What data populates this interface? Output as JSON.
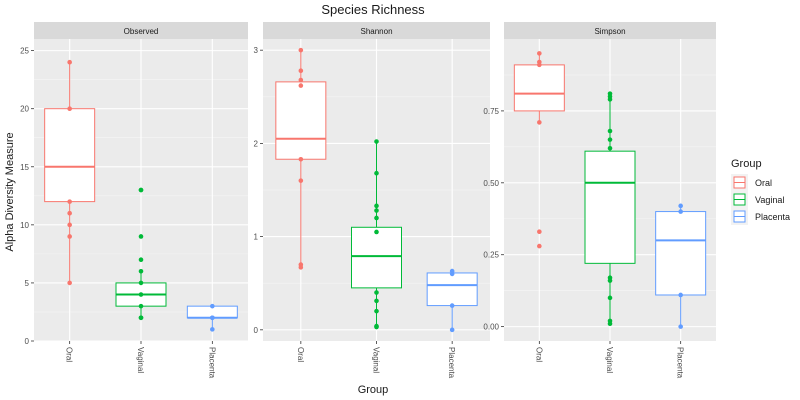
{
  "chart_data": {
    "type": "boxplot",
    "title": "Species Richness",
    "xlabel": "Group",
    "ylabel": "Alpha Diversity Measure",
    "categories": [
      "Oral",
      "Vaginal",
      "Placenta"
    ],
    "legend": {
      "title": "Group",
      "position": "right",
      "entries": [
        {
          "label": "Oral",
          "color": "#F8766D"
        },
        {
          "label": "Vaginal",
          "color": "#00BA38"
        },
        {
          "label": "Placenta",
          "color": "#619CFF"
        }
      ]
    },
    "grid": true,
    "panels": [
      {
        "name": "Observed",
        "ylim": [
          0,
          26
        ],
        "yticks": [
          0,
          5,
          10,
          15,
          20,
          25
        ],
        "ytick_labels": [
          "0",
          "5",
          "10",
          "15",
          "20",
          "25"
        ],
        "boxes": [
          {
            "group": "Oral",
            "min": 5,
            "q1": 12,
            "median": 15,
            "q3": 20,
            "max": 24,
            "points": [
              24,
              20,
              12,
              11,
              10,
              9,
              5
            ]
          },
          {
            "group": "Vaginal",
            "min": 2,
            "q1": 3,
            "median": 4,
            "q3": 5,
            "max": 6,
            "points": [
              13,
              13,
              9,
              7,
              6,
              5,
              4,
              3,
              2,
              2
            ]
          },
          {
            "group": "Placenta",
            "min": 1,
            "q1": 2,
            "median": 2,
            "q3": 3,
            "max": 3,
            "points": [
              3,
              2,
              2,
              1
            ]
          }
        ]
      },
      {
        "name": "Shannon",
        "ylim": [
          -0.12,
          3.12
        ],
        "yticks": [
          0,
          1,
          2,
          3
        ],
        "ytick_labels": [
          "0",
          "1",
          "2",
          "3"
        ],
        "boxes": [
          {
            "group": "Oral",
            "min": 0.67,
            "q1": 1.83,
            "median": 2.05,
            "q3": 2.66,
            "max": 3.0,
            "points": [
              3.0,
              2.78,
              2.68,
              2.62,
              1.83,
              1.6,
              0.7,
              0.67
            ]
          },
          {
            "group": "Vaginal",
            "min": 0.03,
            "q1": 0.45,
            "median": 0.79,
            "q3": 1.1,
            "max": 2.02,
            "points": [
              2.02,
              1.68,
              1.33,
              1.28,
              1.2,
              1.05,
              0.4,
              0.31,
              0.2,
              0.04,
              0.03
            ]
          },
          {
            "group": "Placenta",
            "min": 0.0,
            "q1": 0.26,
            "median": 0.48,
            "q3": 0.61,
            "max": 0.63,
            "points": [
              0.63,
              0.6,
              0.26,
              0.0
            ]
          }
        ]
      },
      {
        "name": "Simpson",
        "ylim": [
          -0.05,
          1.0
        ],
        "yticks": [
          0,
          0.25,
          0.5,
          0.75
        ],
        "ytick_labels": [
          "0.00",
          "0.25",
          "0.50",
          "0.75"
        ],
        "boxes": [
          {
            "group": "Oral",
            "min": 0.71,
            "q1": 0.75,
            "median": 0.81,
            "q3": 0.91,
            "max": 0.95,
            "points": [
              0.95,
              0.92,
              0.91,
              0.71,
              0.33,
              0.28
            ]
          },
          {
            "group": "Vaginal",
            "min": 0.01,
            "q1": 0.22,
            "median": 0.5,
            "q3": 0.61,
            "max": 0.81,
            "points": [
              0.81,
              0.8,
              0.79,
              0.68,
              0.65,
              0.62,
              0.17,
              0.16,
              0.1,
              0.02,
              0.01
            ]
          },
          {
            "group": "Placenta",
            "min": 0.0,
            "q1": 0.11,
            "median": 0.3,
            "q3": 0.4,
            "max": 0.42,
            "points": [
              0.42,
              0.4,
              0.11,
              0.0
            ]
          }
        ]
      }
    ]
  }
}
